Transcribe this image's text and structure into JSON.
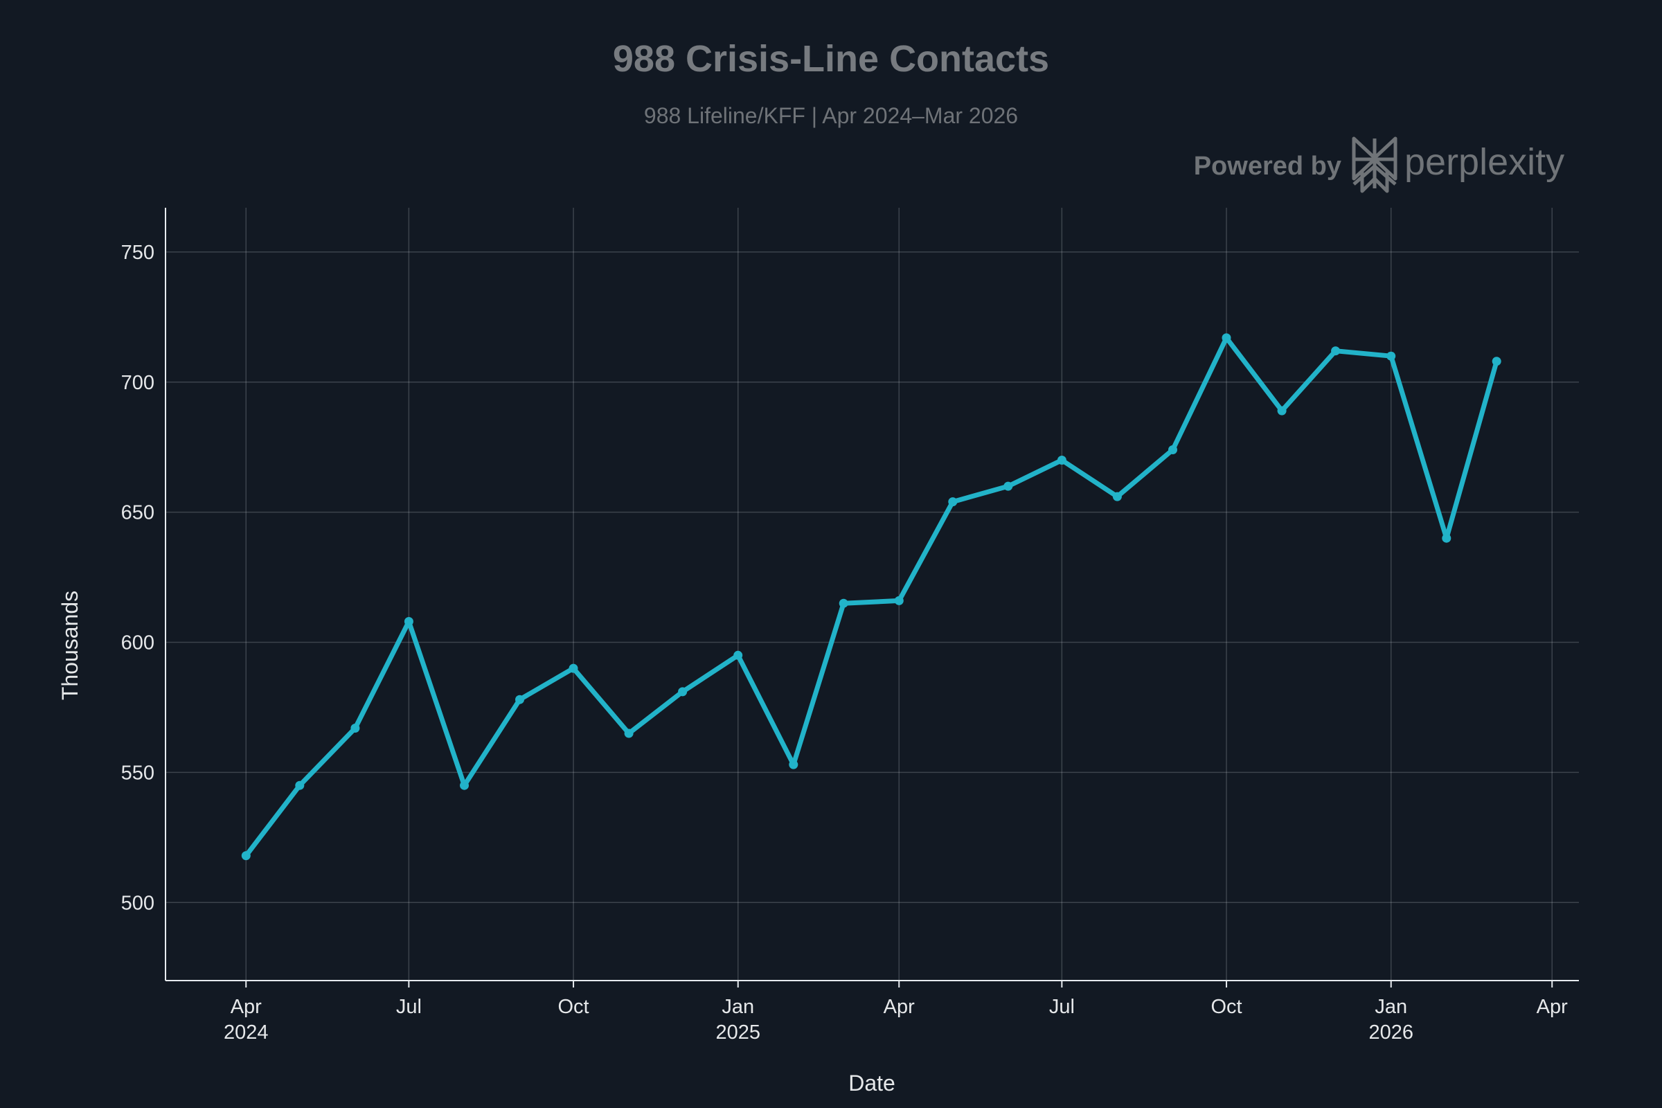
{
  "header": {
    "title": "988 Crisis-Line Contacts",
    "subtitle": "988 Lifeline/KFF | Apr 2024–Mar 2026",
    "powered_by": "Powered by",
    "brand": "perplexity",
    "brand_icon": "perplexity-logo-icon"
  },
  "colors": {
    "background": "#121923",
    "line": "#22b3c9",
    "axis": "#e8ecf0"
  },
  "chart_data": {
    "type": "line",
    "xlabel": "Date",
    "ylabel": "Thousands",
    "x": [
      "2024-04-01",
      "2024-05-01",
      "2024-06-01",
      "2024-07-01",
      "2024-08-01",
      "2024-09-01",
      "2024-10-01",
      "2024-11-01",
      "2024-12-01",
      "2025-01-01",
      "2025-02-01",
      "2025-03-01",
      "2025-04-01",
      "2025-05-01",
      "2025-06-01",
      "2025-07-01",
      "2025-08-01",
      "2025-09-01",
      "2025-10-01",
      "2025-11-01",
      "2025-12-01",
      "2026-01-01",
      "2026-02-01",
      "2026-03-01"
    ],
    "series": [
      {
        "values": [
          518,
          545,
          567,
          608,
          545,
          578,
          590,
          565,
          581,
          595,
          553,
          615,
          616,
          654,
          660,
          670,
          656,
          674,
          717,
          689,
          712,
          710,
          640,
          708
        ]
      }
    ],
    "xlim": [
      "2024-02-16",
      "2026-04-16"
    ],
    "ylim": [
      470,
      767
    ],
    "y_ticks": [
      500,
      550,
      600,
      650,
      700,
      750
    ],
    "x_ticks": [
      {
        "date": "2024-04-01",
        "label": "Apr",
        "year": "2024"
      },
      {
        "date": "2024-07-01",
        "label": "Jul",
        "year": ""
      },
      {
        "date": "2024-10-01",
        "label": "Oct",
        "year": ""
      },
      {
        "date": "2025-01-01",
        "label": "Jan",
        "year": "2025"
      },
      {
        "date": "2025-04-01",
        "label": "Apr",
        "year": ""
      },
      {
        "date": "2025-07-01",
        "label": "Jul",
        "year": ""
      },
      {
        "date": "2025-10-01",
        "label": "Oct",
        "year": ""
      },
      {
        "date": "2026-01-01",
        "label": "Jan",
        "year": "2026"
      },
      {
        "date": "2026-04-01",
        "label": "Apr",
        "year": ""
      }
    ],
    "grid": true,
    "legend": "none"
  }
}
